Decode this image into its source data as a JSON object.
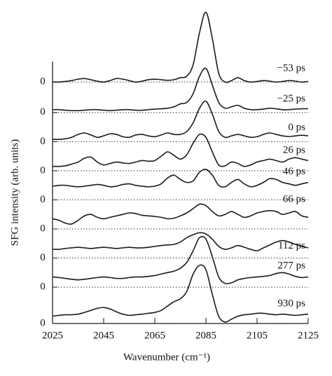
{
  "chart_data": {
    "type": "line",
    "xlabel": "Wavenumber (cm⁻¹)",
    "ylabel": "SFG intensity (arb. units)",
    "xlim": [
      2025,
      2125
    ],
    "xticks": [
      2025,
      2045,
      2065,
      2085,
      2105,
      2125
    ],
    "ylim": [
      0,
      11
    ],
    "yticks": [
      {
        "value": 0,
        "label": "0"
      },
      {
        "value": 1.25,
        "label": "0"
      },
      {
        "value": 2.25,
        "label": "0"
      },
      {
        "value": 3.25,
        "label": "0"
      },
      {
        "value": 4.25,
        "label": "0"
      },
      {
        "value": 5.25,
        "label": "0"
      },
      {
        "value": 6.25,
        "label": "0"
      },
      {
        "value": 7.25,
        "label": "0"
      },
      {
        "value": 8.3,
        "label": "0"
      }
    ],
    "grid": true,
    "x": [
      2025,
      2027.5,
      2030,
      2032.5,
      2035,
      2037.5,
      2040,
      2042.5,
      2045,
      2047.5,
      2050,
      2052.5,
      2055,
      2057.5,
      2060,
      2062.5,
      2065,
      2067.5,
      2070,
      2072.5,
      2075,
      2077.5,
      2080,
      2082.5,
      2085,
      2087.5,
      2090,
      2092.5,
      2095,
      2097.5,
      2100,
      2102.5,
      2105,
      2107.5,
      2110,
      2112.5,
      2115,
      2117.5,
      2120,
      2122.5,
      2125
    ],
    "series": [
      {
        "name": "−53 ps",
        "color": "#1a1a1a",
        "values": [
          8.3,
          8.3,
          8.32,
          8.35,
          8.4,
          8.42,
          8.38,
          8.33,
          8.3,
          8.35,
          8.42,
          8.4,
          8.35,
          8.3,
          8.33,
          8.38,
          8.4,
          8.38,
          8.36,
          8.38,
          8.45,
          8.5,
          8.9,
          10.0,
          10.7,
          9.8,
          8.6,
          8.3,
          8.35,
          8.45,
          8.35,
          8.3,
          8.32,
          8.35,
          8.33,
          8.3,
          8.32,
          8.35,
          8.33,
          8.3,
          8.32
        ]
      },
      {
        "name": "−25 ps",
        "color": "#1a1a1a",
        "values": [
          7.35,
          7.35,
          7.33,
          7.32,
          7.32,
          7.33,
          7.35,
          7.35,
          7.33,
          7.32,
          7.33,
          7.35,
          7.35,
          7.33,
          7.33,
          7.35,
          7.37,
          7.38,
          7.4,
          7.45,
          7.55,
          7.6,
          7.9,
          8.5,
          8.77,
          8.2,
          7.6,
          7.4,
          7.45,
          7.5,
          7.4,
          7.35,
          7.35,
          7.37,
          7.4,
          7.38,
          7.35,
          7.35,
          7.37,
          7.38,
          7.38
        ]
      },
      {
        "name": "0 ps",
        "color": "#1a1a1a",
        "values": [
          6.33,
          6.33,
          6.35,
          6.4,
          6.5,
          6.55,
          6.48,
          6.4,
          6.45,
          6.52,
          6.5,
          6.42,
          6.4,
          6.48,
          6.5,
          6.45,
          6.42,
          6.48,
          6.55,
          6.5,
          6.5,
          6.6,
          6.9,
          7.4,
          7.64,
          7.2,
          6.6,
          6.4,
          6.45,
          6.5,
          6.45,
          6.4,
          6.42,
          6.5,
          6.55,
          6.5,
          6.45,
          6.43,
          6.45,
          6.47,
          6.45
        ]
      },
      {
        "name": "26 ps",
        "color": "#1a1a1a",
        "values": [
          5.4,
          5.4,
          5.42,
          5.48,
          5.55,
          5.68,
          5.72,
          5.55,
          5.45,
          5.5,
          5.55,
          5.52,
          5.5,
          5.55,
          5.6,
          5.58,
          5.6,
          5.75,
          5.9,
          5.78,
          5.65,
          5.8,
          6.2,
          6.5,
          6.4,
          5.9,
          5.45,
          5.42,
          5.55,
          5.5,
          5.4,
          5.45,
          5.55,
          5.6,
          5.65,
          5.6,
          5.55,
          5.65,
          5.7,
          5.65,
          5.6
        ]
      },
      {
        "name": "46 ps",
        "color": "#1a1a1a",
        "values": [
          4.72,
          4.75,
          4.75,
          4.72,
          4.7,
          4.72,
          4.75,
          4.78,
          4.75,
          4.7,
          4.72,
          4.78,
          4.8,
          4.75,
          4.72,
          4.7,
          4.72,
          4.8,
          5.0,
          5.1,
          4.95,
          4.85,
          4.9,
          5.2,
          5.3,
          5.1,
          4.75,
          4.7,
          4.85,
          4.95,
          4.8,
          4.7,
          4.75,
          4.85,
          4.98,
          4.95,
          4.85,
          4.8,
          4.75,
          4.8,
          4.85
        ]
      },
      {
        "name": "66 ps",
        "color": "#1a1a1a",
        "values": [
          3.6,
          3.55,
          3.45,
          3.42,
          3.55,
          3.7,
          3.75,
          3.65,
          3.6,
          3.65,
          3.7,
          3.75,
          3.8,
          3.78,
          3.72,
          3.7,
          3.68,
          3.65,
          3.6,
          3.62,
          3.7,
          3.8,
          3.95,
          4.1,
          4.05,
          3.85,
          3.7,
          3.75,
          3.85,
          3.75,
          3.65,
          3.7,
          3.8,
          3.85,
          3.88,
          3.85,
          3.75,
          3.8,
          3.85,
          3.7,
          3.65
        ]
      },
      {
        "name": "112 ps",
        "color": "#1a1a1a",
        "values": [
          2.55,
          2.55,
          2.58,
          2.6,
          2.62,
          2.6,
          2.58,
          2.6,
          2.62,
          2.6,
          2.58,
          2.6,
          2.62,
          2.6,
          2.6,
          2.62,
          2.65,
          2.68,
          2.7,
          2.72,
          2.8,
          2.95,
          3.05,
          3.12,
          3.08,
          2.9,
          2.65,
          2.55,
          2.6,
          2.68,
          2.62,
          2.55,
          2.5,
          2.6,
          2.7,
          2.8,
          2.85,
          2.8,
          2.72,
          2.65,
          2.6
        ]
      },
      {
        "name": "277 ps",
        "color": "#1a1a1a",
        "values": [
          1.6,
          1.58,
          1.55,
          1.52,
          1.5,
          1.52,
          1.55,
          1.58,
          1.6,
          1.58,
          1.55,
          1.55,
          1.58,
          1.6,
          1.6,
          1.62,
          1.65,
          1.7,
          1.75,
          1.8,
          1.9,
          2.1,
          2.5,
          2.95,
          2.9,
          2.3,
          1.6,
          1.38,
          1.4,
          1.5,
          1.55,
          1.58,
          1.6,
          1.62,
          1.65,
          1.72,
          1.75,
          1.7,
          1.62,
          1.58,
          1.6
        ]
      },
      {
        "name": "930 ps",
        "color": "#1a1a1a",
        "values": [
          0.25,
          0.28,
          0.3,
          0.3,
          0.32,
          0.38,
          0.45,
          0.52,
          0.55,
          0.5,
          0.4,
          0.32,
          0.28,
          0.3,
          0.32,
          0.35,
          0.38,
          0.45,
          0.6,
          0.75,
          0.85,
          1.1,
          1.7,
          2.0,
          1.85,
          1.0,
          0.25,
          0.05,
          0.15,
          0.25,
          0.3,
          0.32,
          0.35,
          0.35,
          0.32,
          0.3,
          0.32,
          0.3,
          0.28,
          0.3,
          0.32
        ]
      }
    ]
  }
}
